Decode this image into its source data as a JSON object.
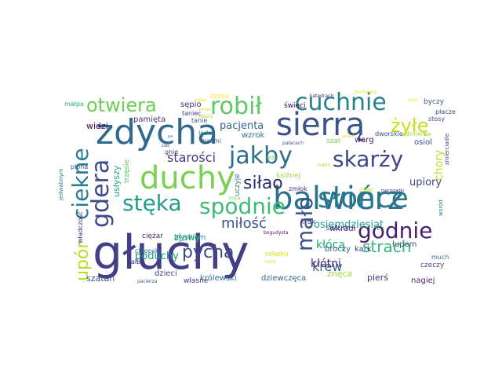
{
  "words": [
    {
      "text": "głuchy",
      "color": "#433e85"
    },
    {
      "text": "zdycha",
      "color": "#31688e"
    },
    {
      "text": "sierrą",
      "color": "#3b528b"
    },
    {
      "text": "balwierz",
      "color": "#2c728e"
    },
    {
      "text": "słońce",
      "color": "#2a788e"
    },
    {
      "text": "duchy",
      "color": "#7ad151"
    },
    {
      "text": "cuchnie",
      "color": "#26828e"
    },
    {
      "text": "robił",
      "color": "#5ec962"
    },
    {
      "text": "otwiera",
      "color": "#6ece58"
    },
    {
      "text": "stęka",
      "color": "#1f9e89"
    },
    {
      "text": "spodnie",
      "color": "#3dbc74"
    },
    {
      "text": "godnie",
      "color": "#481f70"
    },
    {
      "text": "jakby",
      "color": "#2d708e"
    },
    {
      "text": "skarży",
      "color": "#414487"
    },
    {
      "text": "gdera",
      "color": "#3e4989"
    },
    {
      "text": "ciekne",
      "color": "#287d8e"
    },
    {
      "text": "upór",
      "color": "#b5de2b"
    },
    {
      "text": "mało",
      "color": "#3b528b"
    },
    {
      "text": "siłao",
      "color": "#2c2c6f"
    },
    {
      "text": "żyłę",
      "color": "#c8e020"
    },
    {
      "text": "pycha",
      "color": "#3e4989"
    },
    {
      "text": "strach",
      "color": "#35b779"
    },
    {
      "text": "miłość",
      "color": "#3b528b"
    },
    {
      "text": "starości",
      "color": "#443983"
    },
    {
      "text": "krew",
      "color": "#355f8d"
    },
    {
      "text": "kłócą",
      "color": "#22a884"
    },
    {
      "text": "kłótni",
      "color": "#482475"
    },
    {
      "text": "osiemdziesiąt",
      "color": "#1fa187"
    },
    {
      "text": "upiory",
      "color": "#3f4788"
    },
    {
      "text": "chory",
      "color": "#c2df23"
    },
    {
      "text": "pacjenta",
      "color": "#31688e"
    },
    {
      "text": "poduchy",
      "color": "#1f988b"
    },
    {
      "text": "zjawy",
      "color": "#3dbc74"
    },
    {
      "text": "szatan",
      "color": "#39568c"
    },
    {
      "text": "widzi",
      "color": "#440154"
    },
    {
      "text": "pamięta",
      "color": "#46327e"
    },
    {
      "text": "sępio",
      "color": "#472d7b"
    },
    {
      "text": "święci",
      "color": "#440154"
    },
    {
      "text": "byczy",
      "color": "#3a548c"
    },
    {
      "text": "płacze",
      "color": "#404688"
    },
    {
      "text": "stosy",
      "color": "#3e4a89"
    },
    {
      "text": "małpa",
      "color": "#2ab07f"
    },
    {
      "text": "żzera",
      "color": "#fde725"
    },
    {
      "text": "tanie",
      "color": "#365c8d"
    },
    {
      "text": "taniec",
      "color": "#453781"
    },
    {
      "text": "wzrok",
      "color": "#2a768e"
    },
    {
      "text": "władczość",
      "color": "#482878"
    },
    {
      "text": "jedwabnym",
      "color": "#29798e"
    },
    {
      "text": "płona",
      "color": "#3b518b"
    },
    {
      "text": "usłyszy",
      "color": "#20a386"
    },
    {
      "text": "trzęsie",
      "color": "#52c569"
    },
    {
      "text": "ciężar",
      "color": "#482475"
    },
    {
      "text": "błyskiem",
      "color": "#26828e"
    },
    {
      "text": "własne",
      "color": "#453882"
    },
    {
      "text": "uczyje",
      "color": "#277f8e"
    },
    {
      "text": "alby",
      "color": "#482878"
    },
    {
      "text": "dzieci",
      "color": "#404588"
    },
    {
      "text": "chłopski",
      "color": "#2b748e"
    },
    {
      "text": "królewski",
      "color": "#2f6c8e"
    },
    {
      "text": "dziewczęca",
      "color": "#31688e"
    },
    {
      "text": "znęca",
      "color": "#a2da37"
    },
    {
      "text": "pierś",
      "color": "#46307e"
    },
    {
      "text": "nagiej",
      "color": "#482374"
    },
    {
      "text": "czeczy",
      "color": "#3e4c8a"
    },
    {
      "text": "much",
      "color": "#2d718e"
    },
    {
      "text": "broczy",
      "color": "#375b8d"
    },
    {
      "text": "kark",
      "color": "#414487"
    },
    {
      "text": "saturn",
      "color": "#39568c"
    },
    {
      "text": "wkradł",
      "color": "#472c7a"
    },
    {
      "text": "łupem",
      "color": "#3c4f8a"
    },
    {
      "text": "krok",
      "color": "#453781"
    },
    {
      "text": "zmłok",
      "color": "#46327e"
    },
    {
      "text": "warg",
      "color": "#471365"
    },
    {
      "text": "osiol",
      "color": "#3e4c8a"
    },
    {
      "text": "szat",
      "color": "#7ad151"
    },
    {
      "text": "ksiżnej",
      "color": "#a0da39"
    },
    {
      "text": "dworskie",
      "color": "#3b528b"
    },
    {
      "text": "odmierza",
      "color": "#9bd93c"
    },
    {
      "text": "wsród",
      "color": "#2a788e"
    },
    {
      "text": "zmierciadle",
      "color": "#404588"
    },
    {
      "text": "gnie",
      "color": "#453781"
    },
    {
      "text": "pasmi",
      "color": "#365c8d"
    },
    {
      "text": "ląder",
      "color": "#277f8e"
    },
    {
      "text": "ofiar",
      "color": "#c0df25"
    },
    {
      "text": "katedrach",
      "color": "#482677"
    },
    {
      "text": "dociekaja",
      "color": "#e5e419"
    },
    {
      "text": "pałacach",
      "color": "#3d4e8a"
    },
    {
      "text": "rokoko",
      "color": "#d8e219"
    },
    {
      "text": "bogudysta",
      "color": "#481b6d"
    },
    {
      "text": "pacierza",
      "color": "#3b528b"
    },
    {
      "text": "macrozadki",
      "color": "#46327e"
    },
    {
      "text": "łzęsty",
      "color": "#b8de29"
    },
    {
      "text": "smiec",
      "color": "#c8e020"
    },
    {
      "text": "czce",
      "color": "#dde318"
    },
    {
      "text": "kobza",
      "color": "#ece51b"
    },
    {
      "text": "matni",
      "color": "#b5de2b"
    },
    {
      "text": "pa",
      "color": "#2c728e"
    },
    {
      "text": "drży",
      "color": "#4ac16d"
    },
    {
      "text": "kopa",
      "color": "#8bd646"
    },
    {
      "text": "mosk",
      "color": "#fde725"
    },
    {
      "text": "zabi",
      "color": "#365c8d"
    },
    {
      "text": "gmach",
      "color": "#e2e418"
    }
  ]
}
